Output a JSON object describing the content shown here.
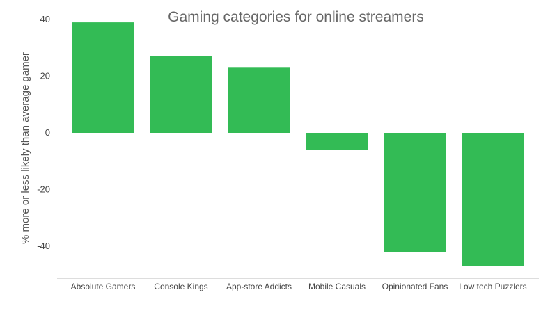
{
  "chart_data": {
    "type": "bar",
    "title": "Gaming categories for online streamers",
    "ylabel": "% more or less likely than average gamer",
    "categories": [
      "Absolute Gamers",
      "Console Kings",
      "App-store Addicts",
      "Mobile Casuals",
      "Opinionated Fans",
      "Low tech Puzzlers"
    ],
    "values": [
      39,
      27,
      23,
      -6,
      -42,
      -47
    ],
    "ylim": [
      -50,
      40
    ],
    "yticks": [
      40,
      20,
      0,
      -20,
      -40
    ],
    "ytick_labels": [
      "40",
      "20",
      "0",
      "-20",
      "-40"
    ],
    "bar_color": "#33bb55",
    "axis_color": "#bbbbbb",
    "grid": false
  }
}
